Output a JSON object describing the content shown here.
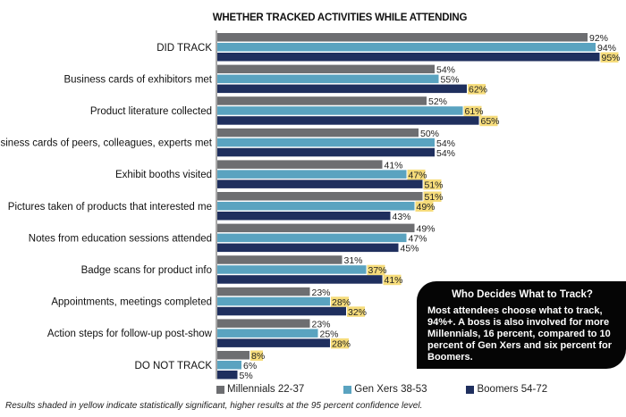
{
  "chart_data": {
    "type": "bar",
    "orientation": "horizontal",
    "title": "WHETHER TRACKED ACTIVITIES WHILE ATTENDING",
    "categories": [
      "DID TRACK",
      "Business cards of exhibitors met",
      "Product literature collected",
      "Business cards of peers, colleagues, experts met",
      "Exhibit booths visited",
      "Pictures taken of products that interested me",
      "Notes from education sessions attended",
      "Badge scans for product info",
      "Appointments, meetings completed",
      "Action steps for follow-up post-show",
      "DO NOT TRACK"
    ],
    "series": [
      {
        "name": "Millennials 22-37",
        "color": "#6d6e71",
        "values": [
          92,
          54,
          52,
          50,
          41,
          51,
          49,
          31,
          23,
          23,
          8
        ],
        "highlighted": [
          false,
          false,
          false,
          false,
          false,
          true,
          false,
          false,
          false,
          false,
          true
        ]
      },
      {
        "name": "Gen Xers 38-53",
        "color": "#5aa3c0",
        "values": [
          94,
          55,
          61,
          54,
          47,
          49,
          47,
          37,
          28,
          25,
          6
        ],
        "highlighted": [
          false,
          false,
          true,
          false,
          true,
          true,
          false,
          true,
          true,
          false,
          false
        ]
      },
      {
        "name": "Boomers 54-72",
        "color": "#1f2f5e",
        "values": [
          95,
          62,
          65,
          54,
          51,
          43,
          45,
          41,
          32,
          28,
          5
        ],
        "highlighted": [
          true,
          true,
          true,
          false,
          true,
          false,
          false,
          true,
          true,
          true,
          false
        ]
      }
    ],
    "value_suffix": "%",
    "highlight_color": "#f6dc7b",
    "xlim": [
      0,
      100
    ],
    "grid": false,
    "legend_position": "bottom"
  },
  "callout": {
    "title": "Who Decides What to Track?",
    "body": "Most attendees choose what to track, 94%+. A boss is also involved for more Millennials, 16 percent, compared to 10 percent of Gen Xers and six percent for Boomers."
  },
  "footnote": "Results shaded in yellow indicate statistically significant, higher results at the 95 percent confidence level."
}
